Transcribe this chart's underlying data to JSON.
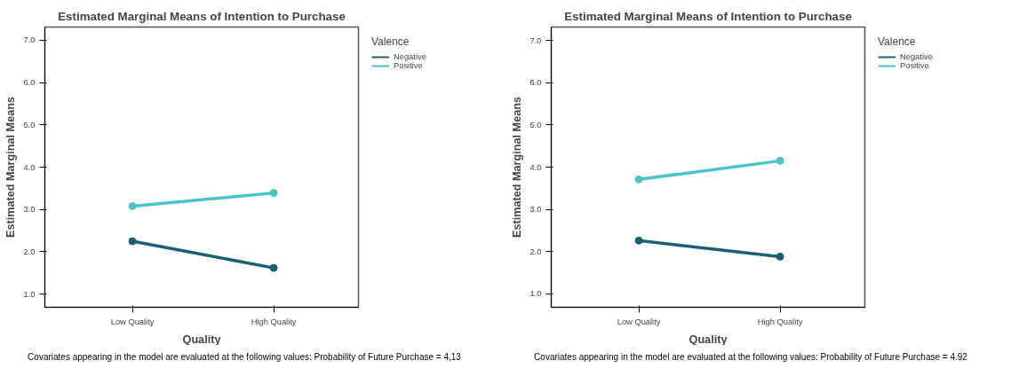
{
  "chart_data": [
    {
      "type": "line",
      "title": "Estimated Marginal Means of Intention to Purchase",
      "xlabel": "Quality",
      "ylabel": "Estimated Marginal Means",
      "legend_title": "Valence",
      "categories": [
        "Low Quality",
        "High Quality"
      ],
      "series": [
        {
          "name": "Negative",
          "color": "#1d5e72",
          "values": [
            2.25,
            1.62
          ]
        },
        {
          "name": "Positive",
          "color": "#4cc3c6",
          "values": [
            3.08,
            3.39
          ]
        }
      ],
      "ylim": [
        0.69,
        7.31
      ],
      "yticks": [
        {
          "value": 1,
          "label": "1.0"
        },
        {
          "value": 2,
          "label": "2.0"
        },
        {
          "value": 3,
          "label": "3.0"
        },
        {
          "value": 4,
          "label": "4.0"
        },
        {
          "value": 5,
          "label": "5.0"
        },
        {
          "value": 6,
          "label": "6.0"
        },
        {
          "value": 7,
          "label": "7.0"
        }
      ],
      "grid": false,
      "legend": "top right",
      "marker": "circle",
      "line_style": "solid",
      "annotations": [
        "Covariates appearing in the model are evaluated at the following values: Probability of Future Purchase = 4,13"
      ]
    },
    {
      "type": "line",
      "title": "Estimated Marginal Means of Intention to Purchase",
      "xlabel": "Quality",
      "ylabel": "Estimated Marginal Means",
      "legend_title": "Valence",
      "categories": [
        "Low Quality",
        "High Quality"
      ],
      "series": [
        {
          "name": "Negative",
          "color": "#1d5e72",
          "values": [
            2.26,
            1.88
          ]
        },
        {
          "name": "Positive",
          "color": "#4cc3c6",
          "values": [
            3.71,
            4.15
          ]
        }
      ],
      "ylim": [
        0.68,
        7.32
      ],
      "yticks": [
        {
          "value": 1,
          "label": "1.0"
        },
        {
          "value": 2,
          "label": "2.0"
        },
        {
          "value": 3,
          "label": "3.0"
        },
        {
          "value": 4,
          "label": "4.0"
        },
        {
          "value": 5,
          "label": "5.0"
        },
        {
          "value": 6,
          "label": "6.0"
        },
        {
          "value": 7,
          "label": "7.0"
        }
      ],
      "grid": false,
      "legend": "top right",
      "marker": "circle",
      "line_style": "solid",
      "annotations": [
        "Covariates appearing in the model are evaluated at the following values: Probability of Future Purchase = 4.92"
      ]
    }
  ]
}
